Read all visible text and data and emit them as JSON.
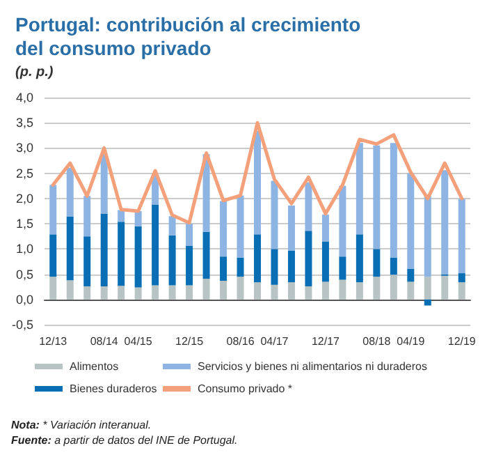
{
  "chart_data": {
    "type": "bar",
    "stacked": true,
    "title": "Portugal: contribución al crecimiento del consumo privado",
    "ylabel": "(p. p.)",
    "categories": [
      "12/13",
      null,
      null,
      "08/14",
      null,
      "04/15",
      null,
      null,
      "12/15",
      null,
      null,
      "08/16",
      null,
      "04/17",
      null,
      null,
      "12/17",
      null,
      null,
      "08/18",
      null,
      "04/19",
      null,
      null,
      "12/19"
    ],
    "series": [
      {
        "name": "Alimentos",
        "color": "#b8c4c4",
        "values": [
          0.45,
          0.38,
          0.26,
          0.26,
          0.27,
          0.24,
          0.28,
          0.28,
          0.28,
          0.41,
          0.37,
          0.45,
          0.34,
          0.29,
          0.34,
          0.26,
          0.35,
          0.39,
          0.34,
          0.45,
          0.49,
          0.35,
          0.45,
          0.47,
          0.34
        ]
      },
      {
        "name": "Bienes duraderos",
        "color": "#0a6eb4",
        "values": [
          0.84,
          1.26,
          0.99,
          1.44,
          1.27,
          1.21,
          1.6,
          0.99,
          0.78,
          0.93,
          0.48,
          0.38,
          0.95,
          0.71,
          0.63,
          1.1,
          0.8,
          0.46,
          0.95,
          0.55,
          0.34,
          0.26,
          -0.12,
          0.03,
          0.18
        ]
      },
      {
        "name": "Servicios y bienes ni alimentarios ni duraderos",
        "color": "#8db4e2",
        "values": [
          0.98,
          0.97,
          0.8,
          1.18,
          0.23,
          0.3,
          0.59,
          0.38,
          0.44,
          1.54,
          1.1,
          1.23,
          2.05,
          1.35,
          0.89,
          0.96,
          0.53,
          1.4,
          1.81,
          2.05,
          2.27,
          1.89,
          1.6,
          2.06,
          1.47
        ]
      },
      {
        "name": "Consumo privado *",
        "type": "line",
        "color": "#f4a07a",
        "values": [
          2.27,
          2.7,
          2.05,
          3.0,
          1.78,
          1.75,
          2.55,
          1.67,
          1.52,
          2.9,
          1.96,
          2.06,
          3.5,
          2.38,
          1.9,
          2.42,
          1.7,
          2.27,
          3.17,
          3.08,
          3.26,
          2.52,
          2.0,
          2.7,
          2.0
        ]
      }
    ],
    "ylim": [
      -0.5,
      4.0
    ],
    "yticks": [
      {
        "value": -0.5,
        "label": "-0,5"
      },
      {
        "value": 0,
        "label": "0,0"
      },
      {
        "value": 0.5,
        "label": "0,5"
      },
      {
        "value": 1,
        "label": "1,0"
      },
      {
        "value": 1.5,
        "label": "1,5"
      },
      {
        "value": 2,
        "label": "2,0"
      },
      {
        "value": 2.5,
        "label": "2,5"
      },
      {
        "value": 3,
        "label": "3,0"
      },
      {
        "value": 3.5,
        "label": "3,5"
      },
      {
        "value": 4,
        "label": "4,0"
      }
    ],
    "grid": "y",
    "legend": "bottom",
    "marker": "none",
    "line_style": "solid",
    "annotations": [
      "Nota: * Variación interanual.",
      "Fuente: a partir de datos del INE de Portugal."
    ]
  }
}
